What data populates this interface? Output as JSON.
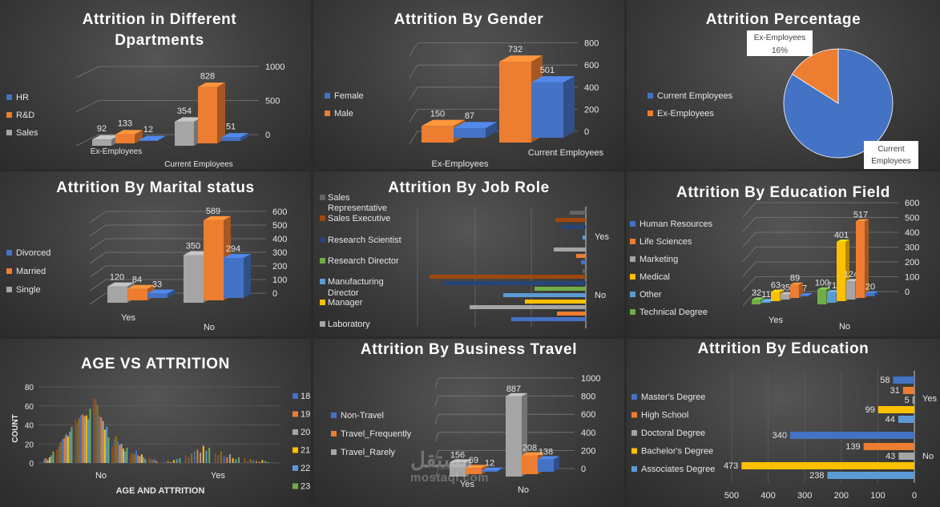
{
  "colors": {
    "blue": "#4472C4",
    "orange": "#ED7D31",
    "gray": "#A5A5A5",
    "yellow": "#FFC000",
    "lightblue": "#5B9BD5",
    "green": "#70AD47",
    "darkblue": "#264478",
    "brown": "#9E480E",
    "darkgray": "#636363",
    "darkyellow": "#997300"
  },
  "watermark": {
    "arabic": "مستقل",
    "latin": "mostaql.com"
  },
  "chart_data": [
    {
      "id": "departments",
      "type": "bar3d",
      "title": "Attrition in Different Dpartments",
      "categories": [
        "Ex-Employees",
        "Current Employees"
      ],
      "series": [
        {
          "name": "HR",
          "values": [
            12,
            51
          ]
        },
        {
          "name": "R&D",
          "values": [
            133,
            828
          ]
        },
        {
          "name": "Sales",
          "values": [
            92,
            354
          ]
        }
      ],
      "axis_ticks": [
        "0",
        "500",
        "1000"
      ],
      "ylim": [
        0,
        1000
      ],
      "legend": "left"
    },
    {
      "id": "gender",
      "type": "bar3d",
      "title": "Attrition By Gender",
      "categories": [
        "Ex-Employees",
        "Current Employees"
      ],
      "series": [
        {
          "name": "Female",
          "values": [
            87,
            501
          ]
        },
        {
          "name": "Male",
          "values": [
            150,
            732
          ]
        }
      ],
      "axis_ticks": [
        "0",
        "200",
        "400",
        "600",
        "800"
      ],
      "ylim": [
        0,
        800
      ],
      "legend": "left"
    },
    {
      "id": "percentage",
      "type": "pie",
      "title": "Attrition Percentage",
      "slices": [
        {
          "name": "Current Employees",
          "label": "Current Employees",
          "pct": "84%",
          "value": 84
        },
        {
          "name": "Ex-Employees",
          "label": "Ex-Employees",
          "pct": "16%",
          "value": 16
        }
      ],
      "legend": "left"
    },
    {
      "id": "marital",
      "type": "bar3d",
      "title": "Attrition By Marital status",
      "categories": [
        "Yes",
        "No"
      ],
      "series": [
        {
          "name": "Divorced",
          "values": [
            33,
            294
          ]
        },
        {
          "name": "Married",
          "values": [
            84,
            589
          ]
        },
        {
          "name": "Single",
          "values": [
            120,
            350
          ]
        }
      ],
      "axis_ticks": [
        "0",
        "100",
        "200",
        "300",
        "400",
        "500",
        "600"
      ],
      "ylim": [
        0,
        600
      ],
      "legend": "left"
    },
    {
      "id": "jobrole",
      "type": "bar",
      "orientation": "horizontal",
      "title": "Attrition By Job Role",
      "category_labels": [
        "Sales Representative",
        "Sales Executive",
        "Research Scientist",
        "Research Director",
        "Manufacturing Director",
        "Manager",
        "Laboratory"
      ],
      "group_labels": [
        "Yes",
        "No"
      ],
      "yes_bars": [
        57,
        47,
        57,
        33,
        37,
        25,
        32,
        13,
        13,
        10
      ],
      "no_bars": [
        9,
        6,
        4,
        63,
        37,
        80,
        64,
        45,
        68,
        70,
        43,
        116,
        161,
        189
      ],
      "legend": "left"
    },
    {
      "id": "eduField",
      "type": "bar3d",
      "title": "Attrition By Education Field",
      "categories": [
        "Yes",
        "No"
      ],
      "series": [
        {
          "name": "Human Resources",
          "values": [
            7,
            20
          ]
        },
        {
          "name": "Life Sciences",
          "values": [
            89,
            517
          ]
        },
        {
          "name": "Marketing",
          "values": [
            35,
            124
          ]
        },
        {
          "name": "Medical",
          "values": [
            63,
            401
          ]
        },
        {
          "name": "Other",
          "values": [
            11,
            71
          ]
        },
        {
          "name": "Technical Degree",
          "values": [
            32,
            100
          ]
        }
      ],
      "axis_ticks": [
        "0",
        "100",
        "200",
        "300",
        "400",
        "500",
        "600"
      ],
      "ylim": [
        0,
        600
      ],
      "legend": "left"
    },
    {
      "id": "age",
      "type": "bar",
      "title": "AGE VS ATTRITION",
      "xlabel": "AGE AND  ATTRITION",
      "ylabel": "COUNT",
      "categories": [
        "No",
        "Yes"
      ],
      "legend_items": [
        {
          "name": "18",
          "color": "#4472C4"
        },
        {
          "name": "19",
          "color": "#ED7D31"
        },
        {
          "name": "20",
          "color": "#A5A5A5"
        },
        {
          "name": "21",
          "color": "#FFC000"
        },
        {
          "name": "22",
          "color": "#5B9BD5"
        },
        {
          "name": "23",
          "color": "#70AD47"
        }
      ],
      "axis_ticks": [
        "0",
        "20",
        "40",
        "60",
        "80"
      ],
      "ylim": [
        0,
        80
      ],
      "no_values": [
        4,
        5,
        3,
        6,
        8,
        12,
        10,
        14,
        18,
        22,
        25,
        26,
        30,
        28,
        33,
        38,
        40,
        45,
        42,
        47,
        50,
        51,
        49,
        50,
        46,
        57,
        52,
        68,
        67,
        61,
        50,
        48,
        44,
        35,
        38,
        27,
        21,
        18,
        25,
        28,
        23,
        19,
        20,
        15,
        12,
        16,
        15,
        10,
        11,
        9,
        13,
        8,
        7,
        9,
        6,
        4,
        5,
        6,
        4,
        3,
        4,
        2
      ],
      "yes_values": [
        1,
        2,
        1,
        3,
        4,
        5,
        7,
        8,
        6,
        10,
        12,
        14,
        11,
        18,
        13,
        16,
        9,
        10,
        8,
        12,
        7,
        6,
        9,
        5,
        4,
        6,
        3,
        5,
        2,
        4,
        3,
        2,
        1,
        3,
        2,
        1,
        2,
        1
      ]
    },
    {
      "id": "travel",
      "type": "bar3d",
      "title": "Attrition By Business Travel",
      "categories": [
        "Yes",
        "No"
      ],
      "series": [
        {
          "name": "Non-Travel",
          "values": [
            12,
            138
          ]
        },
        {
          "name": "Travel_Frequently",
          "values": [
            69,
            208
          ]
        },
        {
          "name": "Travel_Rarely",
          "values": [
            156,
            887
          ]
        }
      ],
      "axis_ticks": [
        "0",
        "200",
        "400",
        "600",
        "800",
        "1000"
      ],
      "ylim": [
        0,
        1000
      ],
      "legend": "left"
    },
    {
      "id": "education",
      "type": "bar",
      "orientation": "horizontal",
      "title": "Attrition By Education",
      "groups": [
        "Yes",
        "No"
      ],
      "series": [
        {
          "name": "Master's Degree",
          "values": [
            58,
            340
          ]
        },
        {
          "name": "High School",
          "values": [
            31,
            139
          ]
        },
        {
          "name": "Doctoral Degree",
          "values": [
            5,
            43
          ]
        },
        {
          "name": "Bachelor's Degree",
          "values": [
            99,
            473
          ]
        },
        {
          "name": "Associates Degree",
          "values": [
            44,
            238
          ]
        }
      ],
      "axis_ticks": [
        "500",
        "400",
        "300",
        "200",
        "100",
        "0"
      ],
      "xlim": [
        0,
        500
      ],
      "legend": "left"
    }
  ]
}
